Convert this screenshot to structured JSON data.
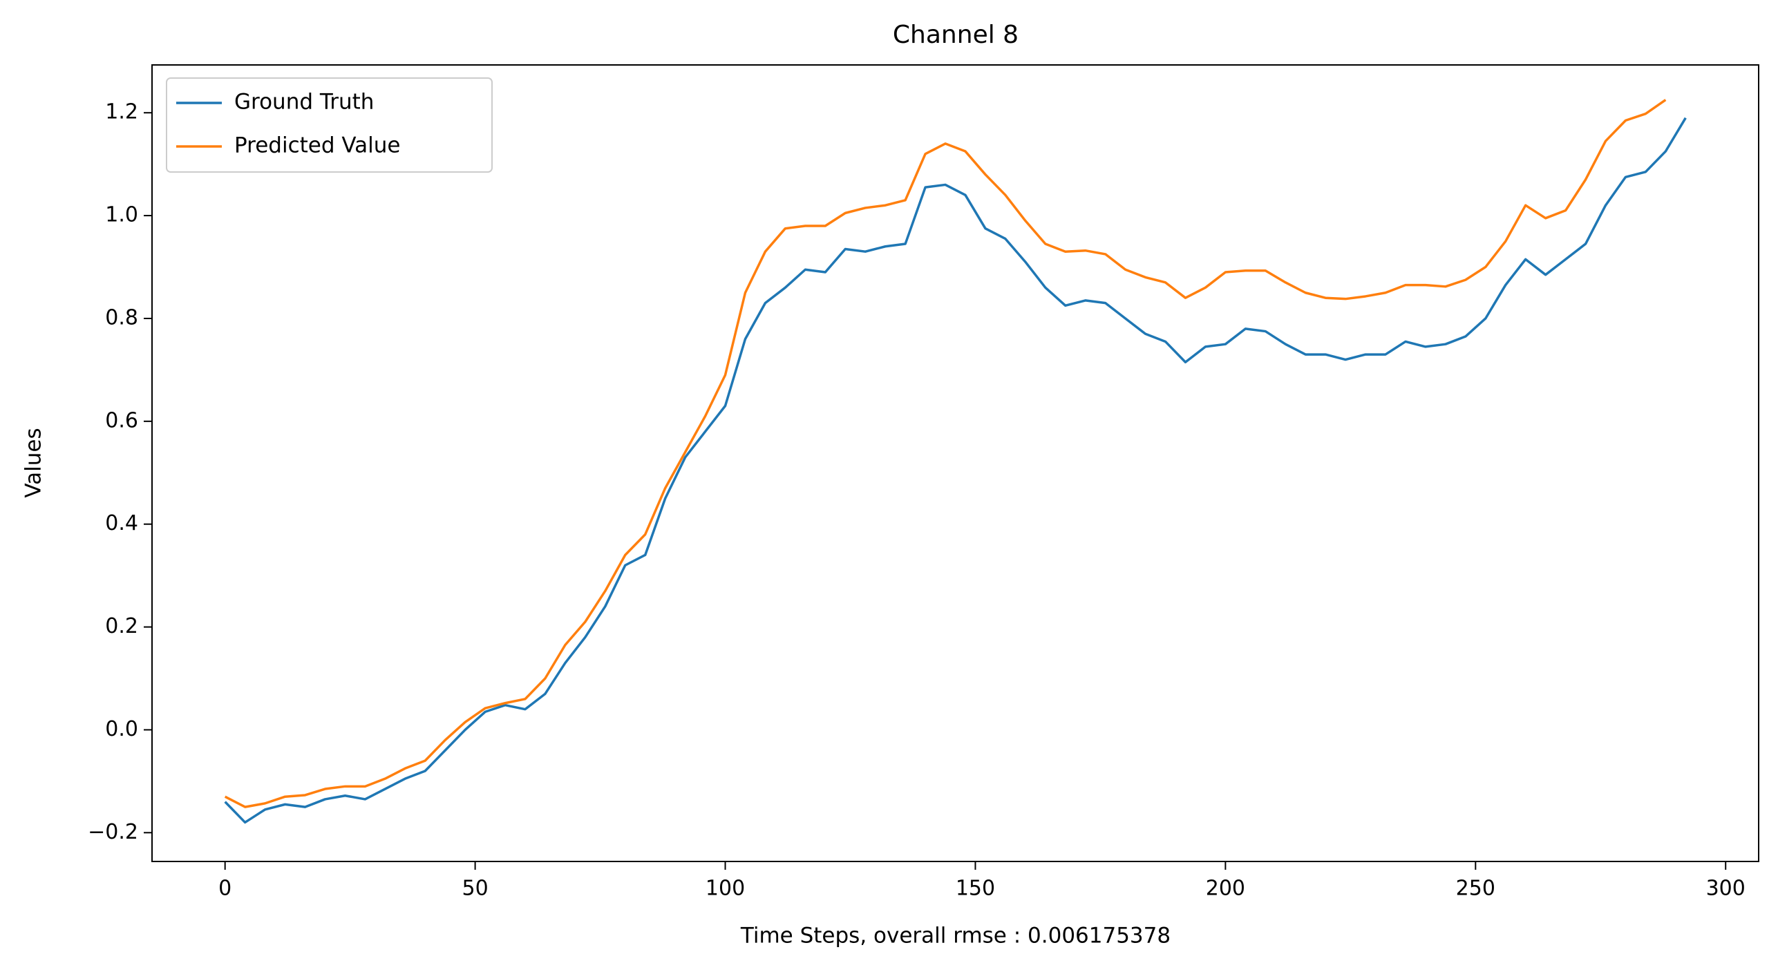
{
  "chart_data": {
    "type": "line",
    "title": "Channel 8",
    "xlabel": "Time Steps, overall rmse : 0.006175378",
    "ylabel": "Values",
    "x": [
      0,
      4,
      8,
      12,
      16,
      20,
      24,
      28,
      32,
      36,
      40,
      44,
      48,
      52,
      56,
      60,
      64,
      68,
      72,
      76,
      80,
      84,
      88,
      92,
      96,
      100,
      104,
      108,
      112,
      116,
      120,
      124,
      128,
      132,
      136,
      140,
      144,
      148,
      152,
      156,
      160,
      164,
      168,
      172,
      176,
      180,
      184,
      188,
      192,
      196,
      200,
      204,
      208,
      212,
      216,
      220,
      224,
      228,
      232,
      236,
      240,
      244,
      248,
      252,
      256,
      260,
      264,
      268,
      272,
      276,
      280,
      284,
      288,
      292
    ],
    "series": [
      {
        "name": "Ground Truth",
        "color": "#1f77b4",
        "values": [
          -0.14,
          -0.18,
          -0.155,
          -0.145,
          -0.15,
          -0.135,
          -0.128,
          -0.135,
          -0.115,
          -0.095,
          -0.08,
          -0.04,
          0.0,
          0.035,
          0.048,
          0.04,
          0.07,
          0.13,
          0.18,
          0.24,
          0.32,
          0.34,
          0.45,
          0.53,
          0.58,
          0.63,
          0.76,
          0.83,
          0.86,
          0.895,
          0.89,
          0.935,
          0.93,
          0.94,
          0.945,
          1.055,
          1.06,
          1.04,
          0.975,
          0.955,
          0.91,
          0.86,
          0.825,
          0.835,
          0.83,
          0.8,
          0.77,
          0.755,
          0.715,
          0.745,
          0.75,
          0.78,
          0.775,
          0.75,
          0.73,
          0.73,
          0.72,
          0.73,
          0.73,
          0.755,
          0.745,
          0.75,
          0.765,
          0.8,
          0.865,
          0.915,
          0.885,
          0.915,
          0.945,
          1.02,
          1.075,
          1.085,
          1.125,
          1.19
        ]
      },
      {
        "name": "Predicted Value",
        "color": "#ff7f0e",
        "values": [
          -0.13,
          -0.15,
          -0.143,
          -0.13,
          -0.127,
          -0.115,
          -0.11,
          -0.11,
          -0.095,
          -0.075,
          -0.06,
          -0.02,
          0.015,
          0.042,
          0.052,
          0.06,
          0.1,
          0.165,
          0.21,
          0.27,
          0.34,
          0.38,
          0.47,
          0.54,
          0.61,
          0.69,
          0.85,
          0.93,
          0.975,
          0.98,
          0.98,
          1.005,
          1.015,
          1.02,
          1.03,
          1.12,
          1.14,
          1.125,
          1.08,
          1.04,
          0.99,
          0.945,
          0.93,
          0.932,
          0.925,
          0.895,
          0.88,
          0.87,
          0.84,
          0.86,
          0.89,
          0.893,
          0.893,
          0.87,
          0.85,
          0.84,
          0.838,
          0.843,
          0.85,
          0.865,
          0.865,
          0.862,
          0.875,
          0.9,
          0.95,
          1.02,
          0.995,
          1.01,
          1.07,
          1.145,
          1.185,
          1.198,
          1.225,
          null
        ]
      }
    ],
    "xlim": [
      -14.6,
      306.6
    ],
    "ylim": [
      -0.256,
      1.293
    ],
    "xticks": [
      0,
      50,
      100,
      150,
      200,
      250,
      300
    ],
    "yticks": [
      {
        "value": -0.2,
        "label": "−0.2"
      },
      {
        "value": 0.0,
        "label": "0.0"
      },
      0.2,
      0.4,
      0.6,
      0.8,
      {
        "value": 1.0,
        "label": "1.0"
      },
      1.2
    ],
    "legend": "upper left",
    "grid": false
  }
}
